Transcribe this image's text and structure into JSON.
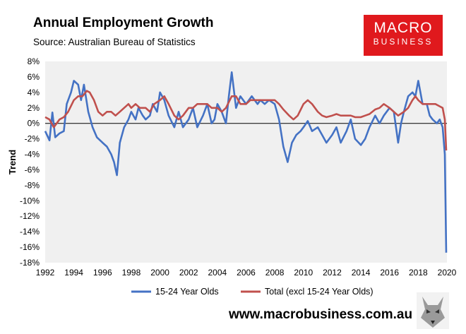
{
  "header": {
    "title": "Annual Employment Growth",
    "subtitle": "Source: Australian Bureau of Statistics"
  },
  "logo": {
    "line1": "MACRO",
    "line2": "BUSINESS"
  },
  "footer": {
    "url": "www.macrobusiness.com.au"
  },
  "colors": {
    "series1": "#4472c4",
    "series2": "#c0504d",
    "plot_bg": "#f0f0f0"
  },
  "chart_data": {
    "type": "line",
    "title": "Annual Employment Growth",
    "subtitle": "Source: Australian Bureau of Statistics",
    "ylabel": "Trend",
    "xlabel": "",
    "xlim": [
      1992,
      2020
    ],
    "ylim": [
      -18,
      8
    ],
    "grid": false,
    "legend": "bottom",
    "x_ticks": [
      "1992",
      "1994",
      "1996",
      "1998",
      "2000",
      "2002",
      "2004",
      "2006",
      "2008",
      "2010",
      "2012",
      "2014",
      "2016",
      "2018",
      "2020"
    ],
    "y_ticks": [
      "8%",
      "6%",
      "4%",
      "2%",
      "0%",
      "-2%",
      "-4%",
      "-6%",
      "-8%",
      "-10%",
      "-12%",
      "-14%",
      "-16%",
      "-18%"
    ],
    "series": [
      {
        "name": "15-24 Year Olds",
        "color": "#4472c4",
        "points": [
          [
            1992.0,
            -1.0
          ],
          [
            1992.3,
            -2.2
          ],
          [
            1992.5,
            1.4
          ],
          [
            1992.7,
            -1.8
          ],
          [
            1993.0,
            -1.3
          ],
          [
            1993.3,
            -1.0
          ],
          [
            1993.5,
            2.5
          ],
          [
            1993.8,
            4.0
          ],
          [
            1994.0,
            5.5
          ],
          [
            1994.3,
            5.0
          ],
          [
            1994.5,
            3.0
          ],
          [
            1994.7,
            5.0
          ],
          [
            1995.0,
            1.5
          ],
          [
            1995.3,
            -0.5
          ],
          [
            1995.6,
            -1.8
          ],
          [
            1996.0,
            -2.5
          ],
          [
            1996.3,
            -3.0
          ],
          [
            1996.6,
            -4.0
          ],
          [
            1996.8,
            -5.0
          ],
          [
            1997.0,
            -6.7
          ],
          [
            1997.2,
            -2.5
          ],
          [
            1997.5,
            -0.5
          ],
          [
            1997.8,
            0.5
          ],
          [
            1998.0,
            1.5
          ],
          [
            1998.3,
            0.5
          ],
          [
            1998.5,
            2.0
          ],
          [
            1998.8,
            1.0
          ],
          [
            1999.0,
            0.5
          ],
          [
            1999.3,
            1.0
          ],
          [
            1999.5,
            2.5
          ],
          [
            1999.8,
            1.5
          ],
          [
            2000.0,
            4.0
          ],
          [
            2000.3,
            3.0
          ],
          [
            2000.6,
            1.0
          ],
          [
            2001.0,
            -0.5
          ],
          [
            2001.3,
            1.5
          ],
          [
            2001.6,
            -0.5
          ],
          [
            2002.0,
            0.5
          ],
          [
            2002.3,
            2.0
          ],
          [
            2002.6,
            -0.5
          ],
          [
            2003.0,
            1.0
          ],
          [
            2003.3,
            2.5
          ],
          [
            2003.6,
            0.0
          ],
          [
            2003.8,
            0.5
          ],
          [
            2004.0,
            2.5
          ],
          [
            2004.3,
            1.5
          ],
          [
            2004.6,
            0.0
          ],
          [
            2004.8,
            3.5
          ],
          [
            2005.0,
            6.6
          ],
          [
            2005.3,
            2.0
          ],
          [
            2005.6,
            3.5
          ],
          [
            2006.0,
            2.5
          ],
          [
            2006.4,
            3.5
          ],
          [
            2006.8,
            2.5
          ],
          [
            2007.0,
            3.0
          ],
          [
            2007.3,
            2.5
          ],
          [
            2007.6,
            3.0
          ],
          [
            2008.0,
            2.5
          ],
          [
            2008.3,
            0.5
          ],
          [
            2008.6,
            -3.0
          ],
          [
            2008.9,
            -5.0
          ],
          [
            2009.2,
            -2.5
          ],
          [
            2009.5,
            -1.5
          ],
          [
            2009.8,
            -1.0
          ],
          [
            2010.0,
            -0.5
          ],
          [
            2010.3,
            0.3
          ],
          [
            2010.6,
            -1.0
          ],
          [
            2011.0,
            -0.5
          ],
          [
            2011.3,
            -1.5
          ],
          [
            2011.6,
            -2.5
          ],
          [
            2012.0,
            -1.5
          ],
          [
            2012.3,
            -0.5
          ],
          [
            2012.6,
            -2.5
          ],
          [
            2013.0,
            -1.0
          ],
          [
            2013.3,
            0.5
          ],
          [
            2013.6,
            -2.0
          ],
          [
            2014.0,
            -2.8
          ],
          [
            2014.3,
            -2.0
          ],
          [
            2014.6,
            -0.5
          ],
          [
            2015.0,
            1.0
          ],
          [
            2015.3,
            0.0
          ],
          [
            2015.6,
            1.0
          ],
          [
            2016.0,
            2.0
          ],
          [
            2016.3,
            1.5
          ],
          [
            2016.6,
            -2.5
          ],
          [
            2016.8,
            0.0
          ],
          [
            2017.0,
            1.5
          ],
          [
            2017.3,
            3.5
          ],
          [
            2017.6,
            4.0
          ],
          [
            2017.8,
            3.5
          ],
          [
            2018.0,
            5.5
          ],
          [
            2018.3,
            2.5
          ],
          [
            2018.6,
            2.5
          ],
          [
            2018.8,
            1.0
          ],
          [
            2019.0,
            0.5
          ],
          [
            2019.3,
            0.0
          ],
          [
            2019.5,
            0.5
          ],
          [
            2019.7,
            -0.5
          ],
          [
            2019.85,
            -4.0
          ],
          [
            2019.95,
            -16.7
          ]
        ]
      },
      {
        "name": "Total (excl 15-24 Year Olds)",
        "color": "#c0504d",
        "points": [
          [
            1992.0,
            0.8
          ],
          [
            1992.3,
            0.5
          ],
          [
            1992.6,
            -0.5
          ],
          [
            1993.0,
            0.5
          ],
          [
            1993.3,
            0.8
          ],
          [
            1993.6,
            1.5
          ],
          [
            1994.0,
            3.0
          ],
          [
            1994.3,
            3.5
          ],
          [
            1994.6,
            3.5
          ],
          [
            1994.9,
            4.2
          ],
          [
            1995.1,
            4.0
          ],
          [
            1995.4,
            3.0
          ],
          [
            1995.7,
            1.5
          ],
          [
            1996.0,
            1.0
          ],
          [
            1996.3,
            1.5
          ],
          [
            1996.6,
            1.5
          ],
          [
            1996.9,
            1.0
          ],
          [
            1997.2,
            1.5
          ],
          [
            1997.5,
            2.0
          ],
          [
            1997.8,
            2.5
          ],
          [
            1998.0,
            2.0
          ],
          [
            1998.3,
            2.5
          ],
          [
            1998.6,
            2.0
          ],
          [
            1999.0,
            2.0
          ],
          [
            1999.3,
            1.5
          ],
          [
            1999.6,
            2.5
          ],
          [
            2000.0,
            3.0
          ],
          [
            2000.3,
            3.5
          ],
          [
            2000.6,
            2.5
          ],
          [
            2001.0,
            1.0
          ],
          [
            2001.3,
            0.5
          ],
          [
            2001.6,
            1.0
          ],
          [
            2002.0,
            2.0
          ],
          [
            2002.3,
            2.0
          ],
          [
            2002.6,
            2.5
          ],
          [
            2003.0,
            2.5
          ],
          [
            2003.3,
            2.5
          ],
          [
            2003.6,
            2.0
          ],
          [
            2004.0,
            2.0
          ],
          [
            2004.3,
            1.5
          ],
          [
            2004.6,
            2.0
          ],
          [
            2005.0,
            3.5
          ],
          [
            2005.3,
            3.5
          ],
          [
            2005.6,
            2.5
          ],
          [
            2006.0,
            2.5
          ],
          [
            2006.3,
            3.0
          ],
          [
            2006.6,
            3.0
          ],
          [
            2007.0,
            3.0
          ],
          [
            2007.3,
            3.0
          ],
          [
            2007.6,
            3.0
          ],
          [
            2008.0,
            3.0
          ],
          [
            2008.3,
            2.5
          ],
          [
            2008.6,
            1.8
          ],
          [
            2009.0,
            1.0
          ],
          [
            2009.3,
            0.5
          ],
          [
            2009.6,
            1.0
          ],
          [
            2010.0,
            2.5
          ],
          [
            2010.3,
            3.0
          ],
          [
            2010.6,
            2.5
          ],
          [
            2011.0,
            1.5
          ],
          [
            2011.3,
            1.0
          ],
          [
            2011.6,
            0.8
          ],
          [
            2012.0,
            1.0
          ],
          [
            2012.3,
            1.2
          ],
          [
            2012.6,
            1.0
          ],
          [
            2013.0,
            1.0
          ],
          [
            2013.3,
            1.0
          ],
          [
            2013.6,
            0.8
          ],
          [
            2014.0,
            0.8
          ],
          [
            2014.3,
            1.0
          ],
          [
            2014.6,
            1.2
          ],
          [
            2015.0,
            1.8
          ],
          [
            2015.3,
            2.0
          ],
          [
            2015.6,
            2.5
          ],
          [
            2016.0,
            2.0
          ],
          [
            2016.3,
            1.5
          ],
          [
            2016.6,
            1.0
          ],
          [
            2017.0,
            1.5
          ],
          [
            2017.3,
            2.0
          ],
          [
            2017.6,
            3.0
          ],
          [
            2017.8,
            3.5
          ],
          [
            2018.0,
            3.0
          ],
          [
            2018.3,
            2.5
          ],
          [
            2018.6,
            2.5
          ],
          [
            2018.9,
            2.5
          ],
          [
            2019.2,
            2.5
          ],
          [
            2019.5,
            2.2
          ],
          [
            2019.7,
            2.0
          ],
          [
            2019.85,
            0.5
          ],
          [
            2019.95,
            -3.5
          ]
        ]
      }
    ]
  }
}
